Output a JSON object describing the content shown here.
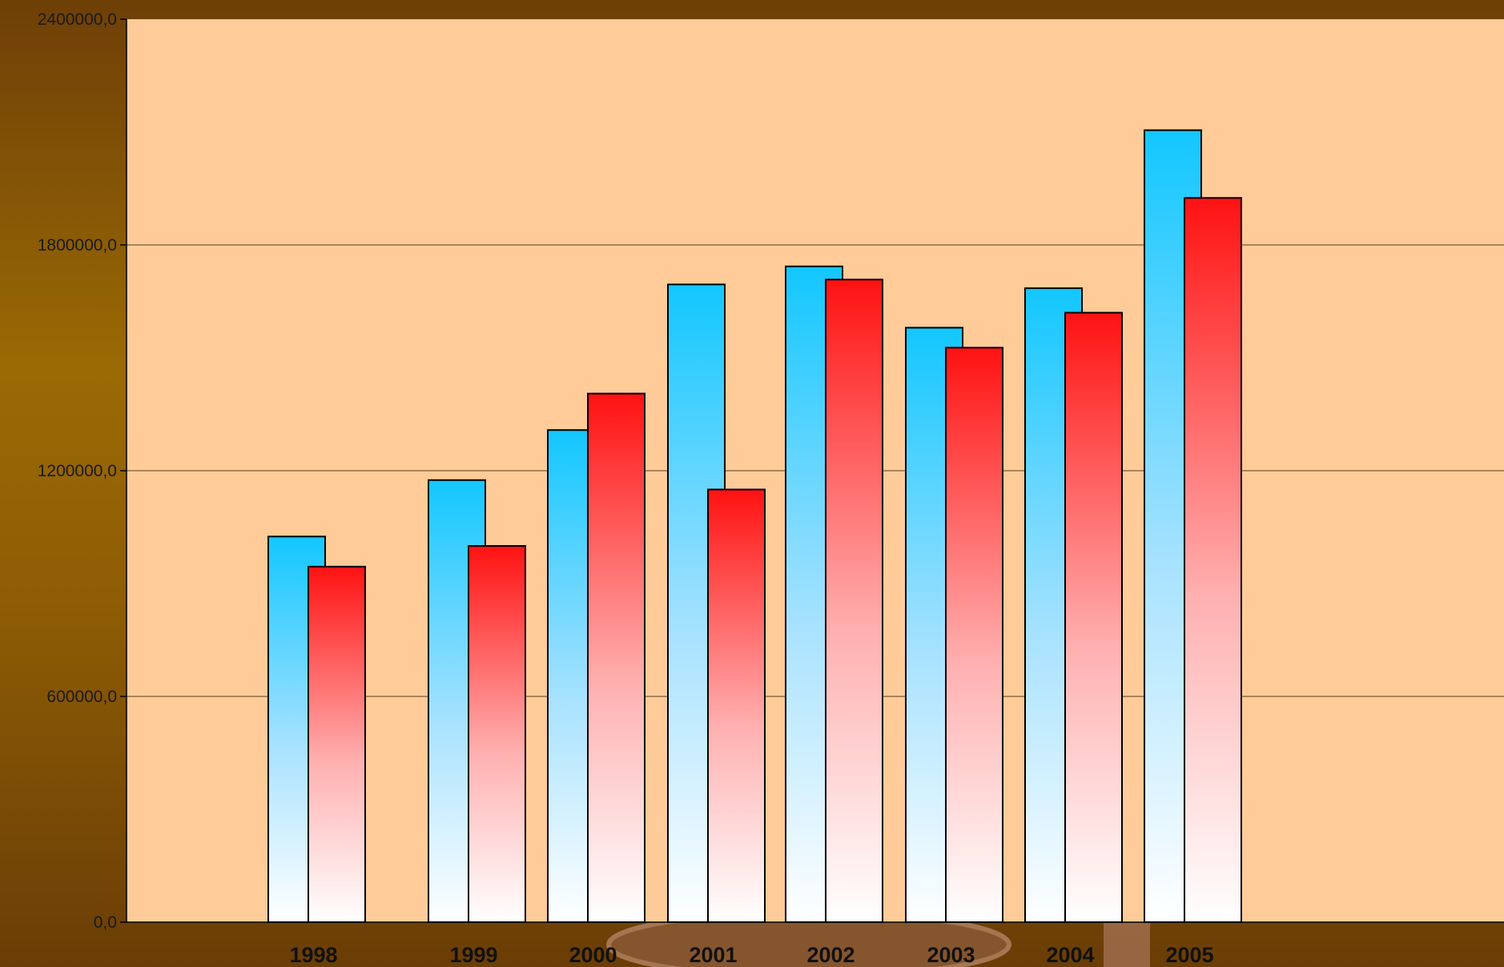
{
  "chart_data": {
    "type": "bar",
    "categories": [
      "1998",
      "1999",
      "2000",
      "2001",
      "2002",
      "2003",
      "2004",
      "2005"
    ],
    "series": [
      {
        "values": [
          1025000,
          1175000,
          1308000,
          1695000,
          1743000,
          1580000,
          1685000,
          2105000
        ],
        "color": "#1ec8ff"
      },
      {
        "values": [
          945000,
          1000000,
          1405000,
          1150000,
          1708000,
          1527000,
          1620000,
          1925000
        ],
        "color": "#ff1a1a"
      }
    ],
    "yticks": [
      "0,0",
      "600000,0",
      "1200000,0",
      "1800000,0",
      "2400000,0"
    ],
    "ylim": [
      0,
      2400000
    ],
    "title": "",
    "xlabel": "",
    "ylabel": "",
    "grid": true,
    "legend": "none",
    "plot_background": "#ffcc99",
    "frame_color": "#6a3d06"
  }
}
